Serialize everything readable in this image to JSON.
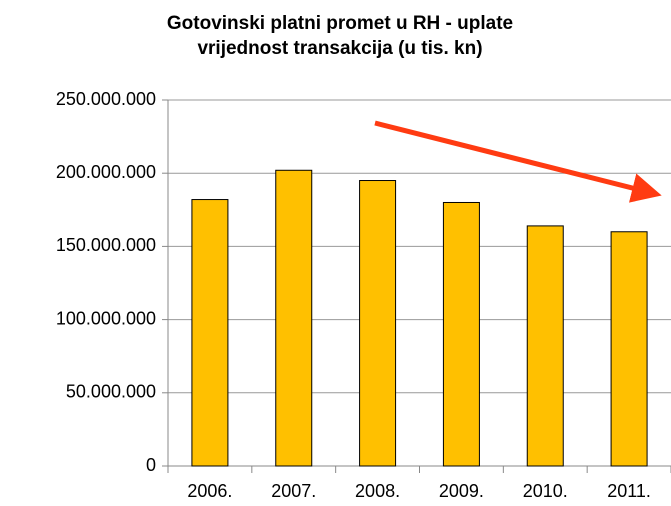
{
  "chart_data": {
    "type": "bar",
    "title": "Gotovinski platni promet u RH - uplate",
    "subtitle": "vrijednost transakcija (u tis. kn)",
    "categories": [
      "2006.",
      "2007.",
      "2008.",
      "2009.",
      "2010.",
      "2011."
    ],
    "values": [
      182000000,
      202000000,
      195000000,
      180000000,
      164000000,
      160000000
    ],
    "color": "#ffc000",
    "ylim": [
      0,
      250000000
    ],
    "yticks": [
      0,
      {
        "value": 50000000,
        "label": "50.000.000"
      },
      {
        "value": 100000000,
        "label": "100.000.000"
      },
      {
        "value": 150000000,
        "label": "150.000.000"
      },
      {
        "value": 200000000,
        "label": "200.000.000"
      },
      {
        "value": 250000000,
        "label": "250.000.000"
      }
    ],
    "grid": true
  }
}
